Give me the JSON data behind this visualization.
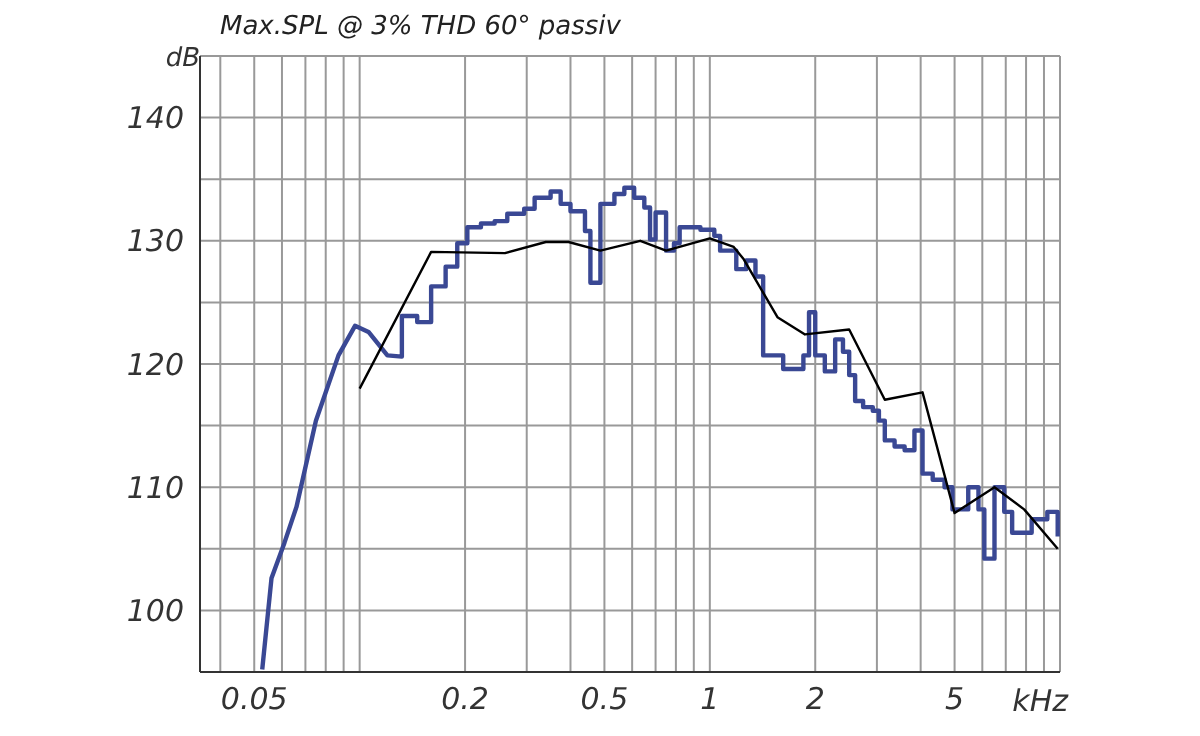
{
  "chart_data": {
    "type": "line",
    "title": "Max.SPL @ 3% THD 60° passiv",
    "xlabel": "kHz",
    "ylabel": "dB",
    "log": "x",
    "xlim": [
      0.035,
      10
    ],
    "xticks": [
      {
        "value": 0.04,
        "label": null
      },
      0.05,
      {
        "value": 0.06,
        "label": null
      },
      {
        "value": 0.07,
        "label": null
      },
      {
        "value": 0.08,
        "label": null
      },
      {
        "value": 0.09,
        "label": null
      },
      {
        "value": 0.1,
        "label": null
      },
      0.2,
      {
        "value": 0.3,
        "label": null
      },
      {
        "value": 0.4,
        "label": null
      },
      0.5,
      {
        "value": 0.6,
        "label": null
      },
      {
        "value": 0.7,
        "label": null
      },
      {
        "value": 0.8,
        "label": null
      },
      {
        "value": 0.9,
        "label": null
      },
      1,
      2,
      {
        "value": 3,
        "label": null
      },
      {
        "value": 4,
        "label": null
      },
      5,
      {
        "value": 6,
        "label": null
      },
      {
        "value": 7,
        "label": null
      },
      {
        "value": 8,
        "label": null
      },
      {
        "value": 9,
        "label": null
      }
    ],
    "ylim": [
      95,
      145
    ],
    "yticks": [
      100,
      {
        "value": 105,
        "label": null
      },
      110,
      {
        "value": 115,
        "label": null
      },
      120,
      {
        "value": 125,
        "label": null
      },
      130,
      {
        "value": 135,
        "label": null
      },
      140
    ],
    "grid": true,
    "marker": "none",
    "series": [
      {
        "color": "#3a4894",
        "x": [
          0.0527,
          0.056,
          0.061,
          0.066,
          0.075,
          0.087,
          0.097,
          0.106,
          0.12,
          0.132,
          0.132,
          0.146,
          0.146,
          0.16,
          0.16,
          0.176,
          0.176,
          0.19,
          0.19,
          0.203,
          0.203,
          0.222,
          0.222,
          0.243,
          0.243,
          0.264,
          0.264,
          0.295,
          0.295,
          0.316,
          0.316,
          0.351,
          0.351,
          0.375,
          0.375,
          0.4,
          0.4,
          0.44,
          0.44,
          0.456,
          0.456,
          0.487,
          0.487,
          0.534,
          0.534,
          0.57,
          0.57,
          0.608,
          0.608,
          0.65,
          0.65,
          0.675,
          0.675,
          0.7,
          0.7,
          0.75,
          0.75,
          0.79,
          0.79,
          0.82,
          0.82,
          0.94,
          0.94,
          1.03,
          1.03,
          1.07,
          1.07,
          1.19,
          1.19,
          1.27,
          1.27,
          1.35,
          1.35,
          1.42,
          1.42,
          1.62,
          1.62,
          1.85,
          1.85,
          1.92,
          1.92,
          2.0,
          2.0,
          2.13,
          2.13,
          2.28,
          2.28,
          2.4,
          2.4,
          2.5,
          2.5,
          2.6,
          2.6,
          2.74,
          2.74,
          2.92,
          2.92,
          3.04,
          3.04,
          3.16,
          3.16,
          3.37,
          3.37,
          3.6,
          3.6,
          3.84,
          3.84,
          4.05,
          4.05,
          4.33,
          4.33,
          4.68,
          4.68,
          4.93,
          4.93,
          5.47,
          5.47,
          5.85,
          5.85,
          6.08,
          6.08,
          6.5,
          6.5,
          6.93,
          6.93,
          7.3,
          7.3,
          8.3,
          8.3,
          9.2,
          9.2,
          9.85,
          9.85
        ],
        "values": [
          95.2,
          102.6,
          105.5,
          108.4,
          115.4,
          120.7,
          123.1,
          122.6,
          120.7,
          120.6,
          123.9,
          123.9,
          123.4,
          123.4,
          126.3,
          126.3,
          127.9,
          127.9,
          129.8,
          129.8,
          131.1,
          131.1,
          131.4,
          131.4,
          131.6,
          131.6,
          132.2,
          132.2,
          132.6,
          132.6,
          133.5,
          133.5,
          134,
          134,
          133,
          133,
          132.4,
          132.4,
          130.8,
          130.8,
          126.6,
          126.6,
          133,
          133,
          133.8,
          133.8,
          134.3,
          134.3,
          133.5,
          133.5,
          132.7,
          132.7,
          130.1,
          130.1,
          132.3,
          132.3,
          129.2,
          129.2,
          129.8,
          129.8,
          131.1,
          131.1,
          130.9,
          130.9,
          130.4,
          130.4,
          129.2,
          129.2,
          127.7,
          127.7,
          128.4,
          128.4,
          127.1,
          127.1,
          120.7,
          120.7,
          119.6,
          119.6,
          120.7,
          120.7,
          124.2,
          124.2,
          120.7,
          120.7,
          119.4,
          119.4,
          122,
          122,
          121,
          121,
          119.1,
          119.1,
          117,
          117,
          116.5,
          116.5,
          116.2,
          116.2,
          115.4,
          115.4,
          113.8,
          113.8,
          113.3,
          113.3,
          113,
          113,
          114.6,
          114.6,
          111.1,
          111.1,
          110.6,
          110.6,
          110,
          110,
          108.2,
          108.2,
          110,
          110,
          108.2,
          108.2,
          104.2,
          104.2,
          110,
          110,
          108,
          108,
          106.3,
          106.3,
          107.4,
          107.4,
          108,
          108,
          106
        ]
      },
      {
        "color": "#000000",
        "x": [
          0.1,
          0.16,
          0.26,
          0.34,
          0.395,
          0.487,
          0.633,
          0.75,
          1.0,
          1.17,
          1.25,
          1.56,
          1.87,
          2.5,
          3.16,
          4.05,
          5.0,
          6.5,
          7.9,
          9.85
        ],
        "values": [
          118,
          129.1,
          129,
          129.9,
          129.9,
          129.2,
          130,
          129.2,
          130.2,
          129.5,
          128.5,
          123.8,
          122.4,
          122.8,
          117.1,
          117.7,
          107.9,
          110,
          108.2,
          105
        ]
      }
    ]
  }
}
